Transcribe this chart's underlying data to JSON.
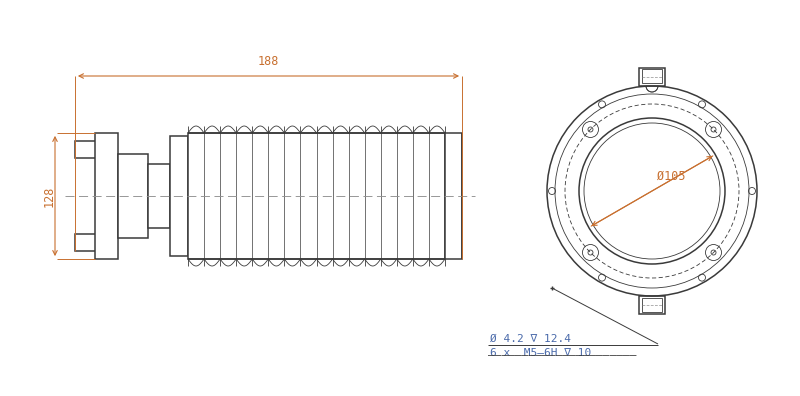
{
  "bg_color": "#ffffff",
  "line_color": "#3a3a3a",
  "dim_color": "#c87030",
  "annotation_color": "#4a6aaa",
  "centerline_color": "#909090",
  "figsize": [
    8.0,
    3.96
  ],
  "dpi": 100,
  "text_128": "128",
  "text_188": "188",
  "text_105": "Ø105",
  "ann_line1": "6 x  M5–6H ∇ 10",
  "ann_line2": "Ø 4.2 ∇ 12.4"
}
